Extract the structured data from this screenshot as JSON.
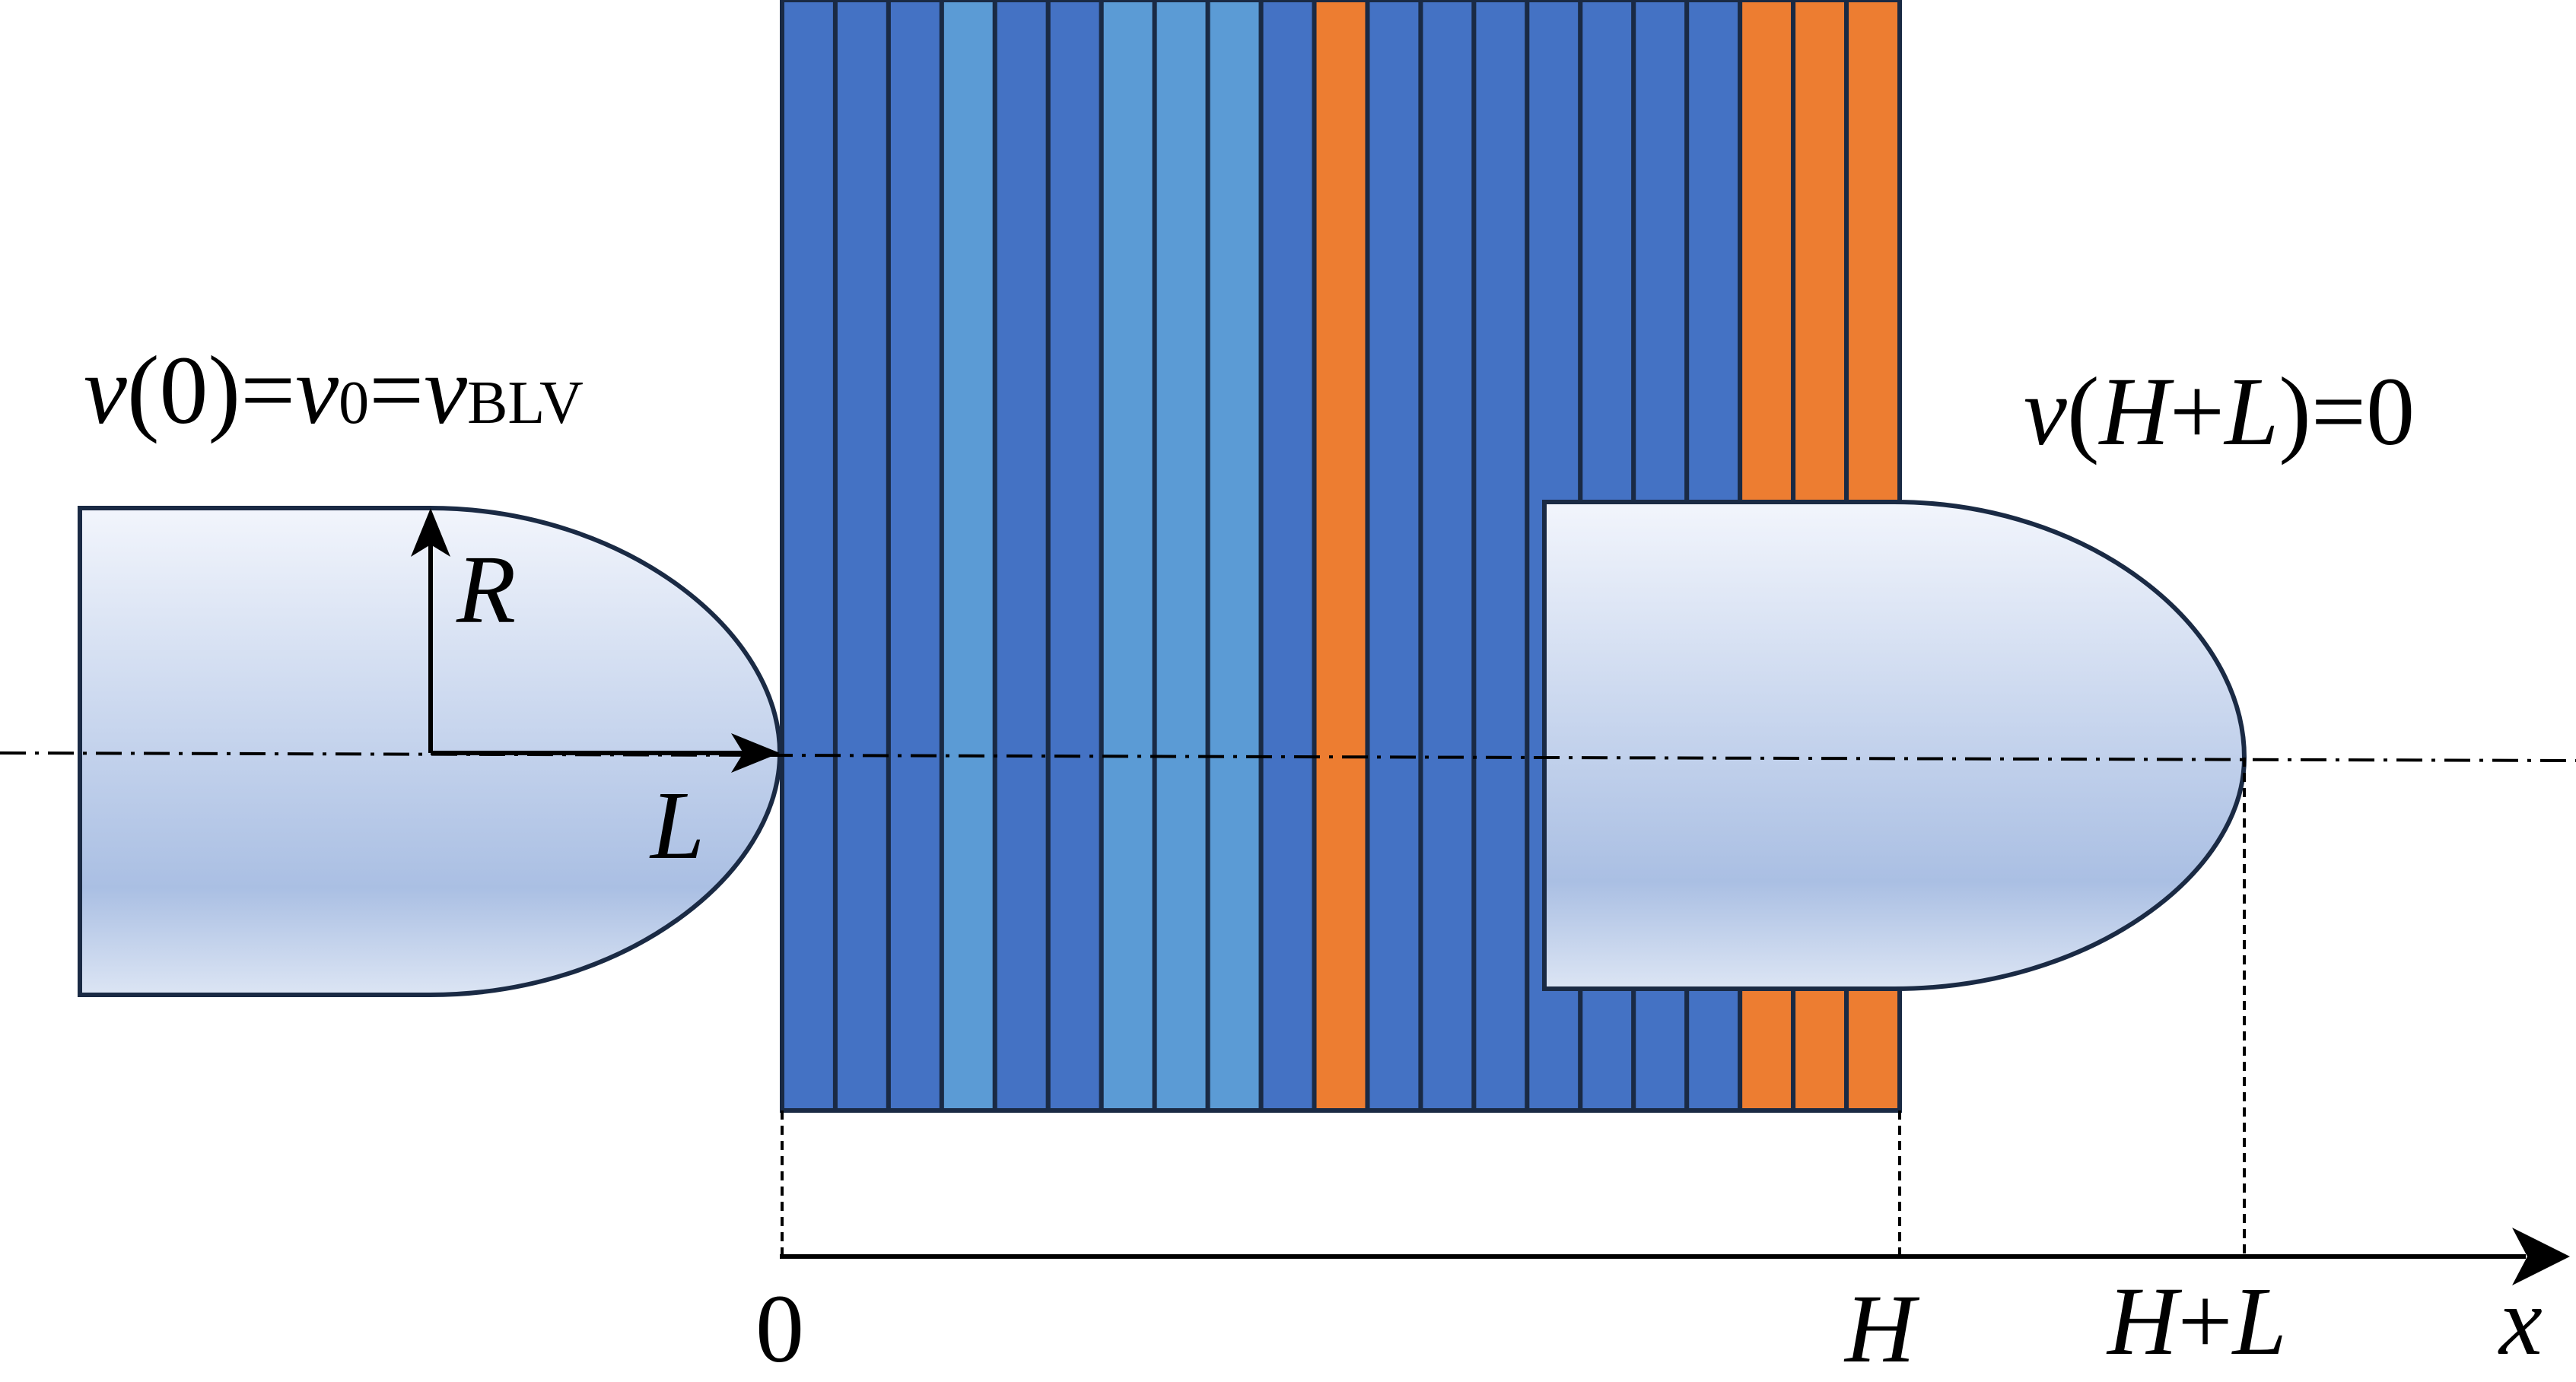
{
  "labels": {
    "left_condition": {
      "v": "v",
      "open": "(",
      "zero": "0",
      "close": ")",
      "eq1": "=",
      "v0": "v",
      "v0_sub": "0",
      "eq2": "=",
      "vblv": "v",
      "vblv_sub": "BLV"
    },
    "right_condition": {
      "v": "v",
      "open": "(",
      "H": "H",
      "plus": "+",
      "L": "L",
      "close": ")",
      "eq": "=",
      "zero": "0"
    },
    "radius": "R",
    "length": "L",
    "axis": {
      "origin": "0",
      "H": "H",
      "HL_H": "H",
      "HL_plus": "+",
      "HL_L": "L",
      "x": "x"
    }
  },
  "layers": [
    "dark",
    "dark",
    "dark",
    "light",
    "dark",
    "dark",
    "light",
    "light",
    "light",
    "dark",
    "orange",
    "dark",
    "dark",
    "dark",
    "dark",
    "dark",
    "dark",
    "dark",
    "orange",
    "orange",
    "orange"
  ],
  "colors": {
    "dark": "#4472C4",
    "light": "#5B9BD5",
    "orange": "#ED7D31",
    "stroke": "#1A2A44",
    "projectile_top": "#F2F5FC",
    "projectile_mid": "#AABFE3",
    "projectile_bottom": "#DCE5F4"
  }
}
